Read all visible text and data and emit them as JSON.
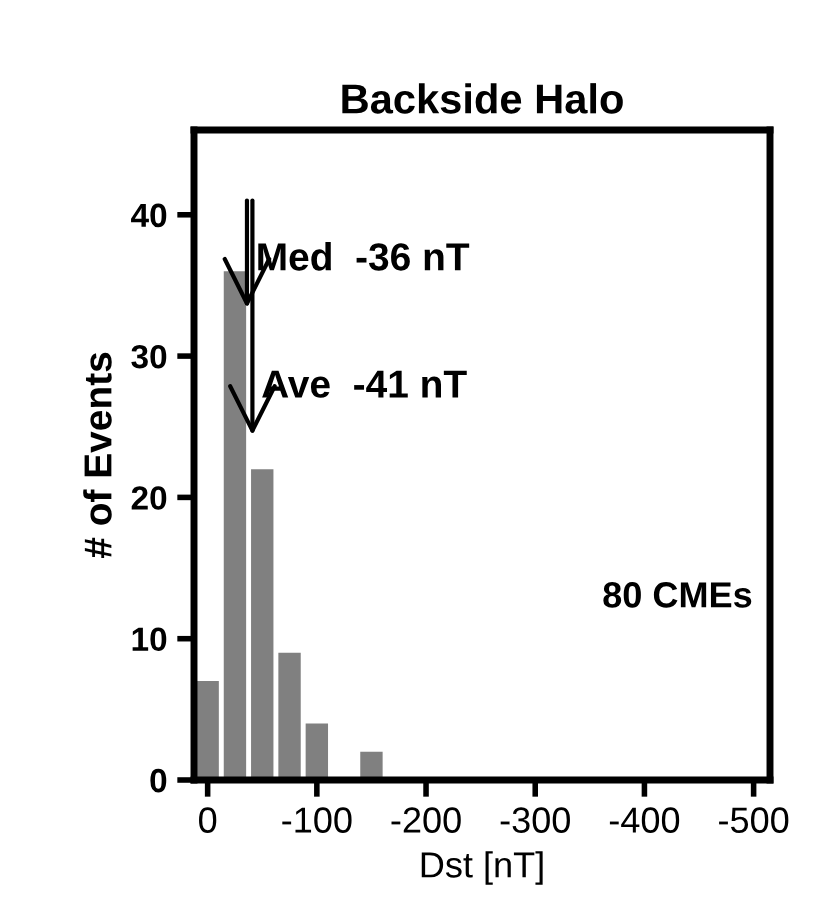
{
  "chart_data": {
    "type": "histogram",
    "title": "Backside Halo",
    "xlabel": "Dst [nT]",
    "ylabel": "# of Events",
    "bins": [
      12.5,
      -12.5,
      -37.5,
      -62.5,
      -87.5,
      -112.5,
      -137.5,
      -162.5
    ],
    "values": [
      7,
      36,
      22,
      9,
      4,
      0,
      2
    ],
    "color": "#808080",
    "xlim": [
      12.5,
      -515
    ],
    "xticks": [
      0,
      -100,
      -200,
      -300,
      -400,
      -500
    ],
    "ylim": [
      0,
      46
    ],
    "yticks": [
      0,
      10,
      20,
      30,
      40
    ],
    "grid": false,
    "legend": false,
    "annotations": [
      {
        "text": "Med  -36 nT",
        "x": -36,
        "y": 33
      },
      {
        "text": "Ave  -41 nT",
        "x": -41,
        "y": 24
      },
      "80 CMEs"
    ]
  }
}
